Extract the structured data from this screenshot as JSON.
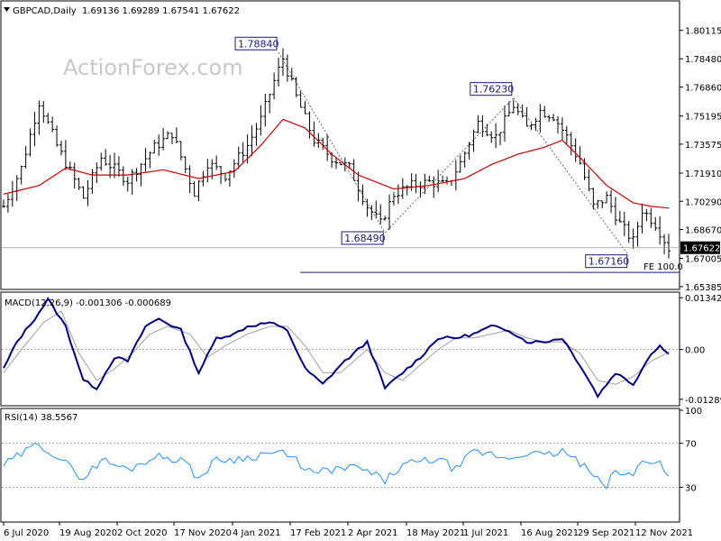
{
  "header": {
    "symbol": "GBPCAD,Daily",
    "ohlc": "1.69136 1.69289 1.67541 1.67622",
    "watermark": "ActionForex.com"
  },
  "colors": {
    "price_bars": "#000000",
    "ma": "#cc0000",
    "macd": "#000080",
    "signal": "#a0a0a0",
    "rsi": "#1e90ff",
    "annotation": "#1a1a80"
  },
  "chart_data": [
    {
      "type": "line",
      "panel": "price",
      "title": "GBPCAD,Daily",
      "ylim": [
        1.6538,
        1.8155
      ],
      "y_ticks": [
        "1.80115",
        "1.78480",
        "1.76860",
        "1.75195",
        "1.73575",
        "1.71910",
        "1.70290",
        "1.68670",
        "1.67005",
        "1.65385"
      ],
      "current_price": "1.67622",
      "annotations": [
        {
          "label": "1.78840",
          "date_index": 62,
          "value": 1.7884
        },
        {
          "label": "1.68490",
          "date_index": 86,
          "value": 1.6849
        },
        {
          "label": "1.76230",
          "date_index": 115,
          "value": 1.7623
        },
        {
          "label": "1.67160",
          "date_index": 141,
          "value": 1.6716
        }
      ],
      "fe_label": "FE 100.0",
      "fe_level": 1.662,
      "close_anchors": [
        [
          0,
          1.7
        ],
        [
          4,
          1.722
        ],
        [
          8,
          1.76
        ],
        [
          12,
          1.735
        ],
        [
          18,
          1.705
        ],
        [
          22,
          1.728
        ],
        [
          28,
          1.715
        ],
        [
          34,
          1.734
        ],
        [
          38,
          1.742
        ],
        [
          43,
          1.708
        ],
        [
          46,
          1.725
        ],
        [
          50,
          1.718
        ],
        [
          55,
          1.735
        ],
        [
          58,
          1.75
        ],
        [
          61,
          1.772
        ],
        [
          63,
          1.785
        ],
        [
          66,
          1.763
        ],
        [
          70,
          1.738
        ],
        [
          74,
          1.728
        ],
        [
          78,
          1.722
        ],
        [
          82,
          1.7
        ],
        [
          85,
          1.69
        ],
        [
          88,
          1.707
        ],
        [
          92,
          1.712
        ],
        [
          96,
          1.714
        ],
        [
          100,
          1.712
        ],
        [
          103,
          1.725
        ],
        [
          107,
          1.748
        ],
        [
          111,
          1.74
        ],
        [
          115,
          1.758
        ],
        [
          118,
          1.745
        ],
        [
          121,
          1.755
        ],
        [
          124,
          1.752
        ],
        [
          127,
          1.74
        ],
        [
          130,
          1.725
        ],
        [
          133,
          1.7
        ],
        [
          136,
          1.705
        ],
        [
          139,
          1.69
        ],
        [
          142,
          1.68
        ],
        [
          144,
          1.698
        ],
        [
          147,
          1.69
        ],
        [
          150,
          1.676
        ]
      ],
      "ma_anchors": [
        [
          0,
          1.707
        ],
        [
          8,
          1.712
        ],
        [
          14,
          1.722
        ],
        [
          20,
          1.718
        ],
        [
          28,
          1.718
        ],
        [
          36,
          1.721
        ],
        [
          44,
          1.716
        ],
        [
          52,
          1.72
        ],
        [
          58,
          1.735
        ],
        [
          63,
          1.75
        ],
        [
          68,
          1.745
        ],
        [
          74,
          1.73
        ],
        [
          80,
          1.718
        ],
        [
          88,
          1.71
        ],
        [
          96,
          1.712
        ],
        [
          104,
          1.716
        ],
        [
          110,
          1.724
        ],
        [
          116,
          1.73
        ],
        [
          122,
          1.734
        ],
        [
          126,
          1.738
        ],
        [
          130,
          1.728
        ],
        [
          136,
          1.712
        ],
        [
          142,
          1.702
        ],
        [
          146,
          1.7
        ],
        [
          150,
          1.699
        ]
      ]
    },
    {
      "type": "line",
      "panel": "macd",
      "title": "MACD(12,26,9) -0.001306 -0.000689",
      "ylim": [
        -0.0141,
        0.0144
      ],
      "y_ticks": [
        "0.013422",
        "0.00",
        "-0.012891"
      ],
      "series": [
        {
          "name": "MACD",
          "anchors": [
            [
              0,
              -0.005
            ],
            [
              3,
              0.002
            ],
            [
              7,
              0.008
            ],
            [
              10,
              0.013
            ],
            [
              14,
              0.006
            ],
            [
              18,
              -0.008
            ],
            [
              21,
              -0.01
            ],
            [
              25,
              -0.002
            ],
            [
              28,
              -0.003
            ],
            [
              32,
              0.006
            ],
            [
              35,
              0.008
            ],
            [
              40,
              0.005
            ],
            [
              44,
              -0.006
            ],
            [
              48,
              0.003
            ],
            [
              52,
              0.004
            ],
            [
              55,
              0.006
            ],
            [
              60,
              0.007
            ],
            [
              64,
              0.005
            ],
            [
              68,
              -0.005
            ],
            [
              72,
              -0.009
            ],
            [
              76,
              -0.004
            ],
            [
              82,
              0.002
            ],
            [
              86,
              -0.01
            ],
            [
              90,
              -0.006
            ],
            [
              94,
              -0.002
            ],
            [
              98,
              0.003
            ],
            [
              102,
              0.003
            ],
            [
              106,
              0.004
            ],
            [
              110,
              0.006
            ],
            [
              114,
              0.005
            ],
            [
              118,
              0.002
            ],
            [
              122,
              0.002
            ],
            [
              126,
              0.003
            ],
            [
              130,
              -0.004
            ],
            [
              134,
              -0.012
            ],
            [
              138,
              -0.006
            ],
            [
              142,
              -0.009
            ],
            [
              146,
              -0.001
            ],
            [
              148,
              0.001
            ],
            [
              150,
              -0.0013
            ]
          ]
        },
        {
          "name": "Signal",
          "anchors": [
            [
              0,
              -0.006
            ],
            [
              4,
              0.0
            ],
            [
              9,
              0.007
            ],
            [
              13,
              0.01
            ],
            [
              17,
              -0.001
            ],
            [
              21,
              -0.008
            ],
            [
              25,
              -0.005
            ],
            [
              29,
              -0.001
            ],
            [
              33,
              0.004
            ],
            [
              37,
              0.006
            ],
            [
              42,
              0.004
            ],
            [
              46,
              -0.002
            ],
            [
              50,
              0.001
            ],
            [
              55,
              0.004
            ],
            [
              60,
              0.006
            ],
            [
              64,
              0.006
            ],
            [
              68,
              0.001
            ],
            [
              72,
              -0.006
            ],
            [
              76,
              -0.006
            ],
            [
              82,
              0.0
            ],
            [
              86,
              -0.006
            ],
            [
              90,
              -0.008
            ],
            [
              94,
              -0.004
            ],
            [
              98,
              0.0
            ],
            [
              102,
              0.003
            ],
            [
              106,
              0.003
            ],
            [
              110,
              0.004
            ],
            [
              114,
              0.005
            ],
            [
              118,
              0.003
            ],
            [
              122,
              0.002
            ],
            [
              126,
              0.002
            ],
            [
              130,
              -0.001
            ],
            [
              134,
              -0.008
            ],
            [
              138,
              -0.009
            ],
            [
              142,
              -0.007
            ],
            [
              146,
              -0.003
            ],
            [
              150,
              -0.0007
            ]
          ]
        }
      ]
    },
    {
      "type": "line",
      "panel": "rsi",
      "title": "RSI(14) 38.5567",
      "ylim": [
        0,
        100
      ],
      "y_ticks": [
        "100",
        "70",
        "30",
        "0"
      ],
      "levels": [
        70,
        30
      ],
      "anchors": [
        [
          0,
          50
        ],
        [
          4,
          60
        ],
        [
          8,
          70
        ],
        [
          12,
          58
        ],
        [
          18,
          38
        ],
        [
          22,
          55
        ],
        [
          28,
          46
        ],
        [
          34,
          58
        ],
        [
          40,
          56
        ],
        [
          44,
          38
        ],
        [
          48,
          55
        ],
        [
          54,
          56
        ],
        [
          58,
          60
        ],
        [
          62,
          62
        ],
        [
          66,
          54
        ],
        [
          70,
          42
        ],
        [
          74,
          46
        ],
        [
          80,
          48
        ],
        [
          84,
          40
        ],
        [
          86,
          36
        ],
        [
          90,
          50
        ],
        [
          94,
          53
        ],
        [
          98,
          56
        ],
        [
          102,
          46
        ],
        [
          106,
          62
        ],
        [
          110,
          60
        ],
        [
          114,
          56
        ],
        [
          118,
          62
        ],
        [
          122,
          58
        ],
        [
          126,
          63
        ],
        [
          130,
          52
        ],
        [
          134,
          36
        ],
        [
          136,
          32
        ],
        [
          138,
          44
        ],
        [
          142,
          40
        ],
        [
          144,
          56
        ],
        [
          148,
          52
        ],
        [
          150,
          38.6
        ]
      ]
    }
  ],
  "x_axis": {
    "labels": [
      "6 Jul 2020",
      "19 Aug 2020",
      "2 Oct 2020",
      "17 Nov 2020",
      "4 Jan 2021",
      "17 Feb 2021",
      "2 Apr 2021",
      "18 May 2021",
      "1 Jul 2021",
      "16 Aug 2021",
      "29 Sep 2021",
      "12 Nov 2021"
    ]
  }
}
